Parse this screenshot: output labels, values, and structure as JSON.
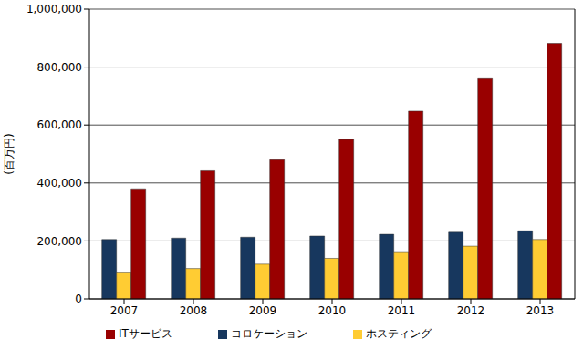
{
  "chart_data": {
    "type": "bar",
    "y_label": "(百万円)",
    "categories": [
      "2007",
      "2008",
      "2009",
      "2010",
      "2011",
      "2012",
      "2013"
    ],
    "series": [
      {
        "name": "コロケーション",
        "color": "#17375E",
        "values": [
          205000,
          210000,
          213000,
          217000,
          223000,
          230000,
          235000
        ]
      },
      {
        "name": "ホスティング",
        "color": "#FFCC33",
        "values": [
          90000,
          105000,
          120000,
          140000,
          160000,
          182000,
          205000
        ]
      },
      {
        "name": "ITサービス",
        "color": "#990000",
        "values": [
          380000,
          442000,
          480000,
          550000,
          648000,
          760000,
          882000
        ]
      }
    ],
    "ylim": [
      0,
      1000000
    ],
    "yticks": [
      0,
      {
        "value": 200000,
        "label": "200,000"
      },
      {
        "value": 400000,
        "label": "400,000"
      },
      {
        "value": 600000,
        "label": "600,000"
      },
      {
        "value": 800000,
        "label": "800,000"
      },
      {
        "value": 1000000,
        "label": "1,000,000"
      }
    ],
    "grid": true,
    "legend": "bottom"
  }
}
